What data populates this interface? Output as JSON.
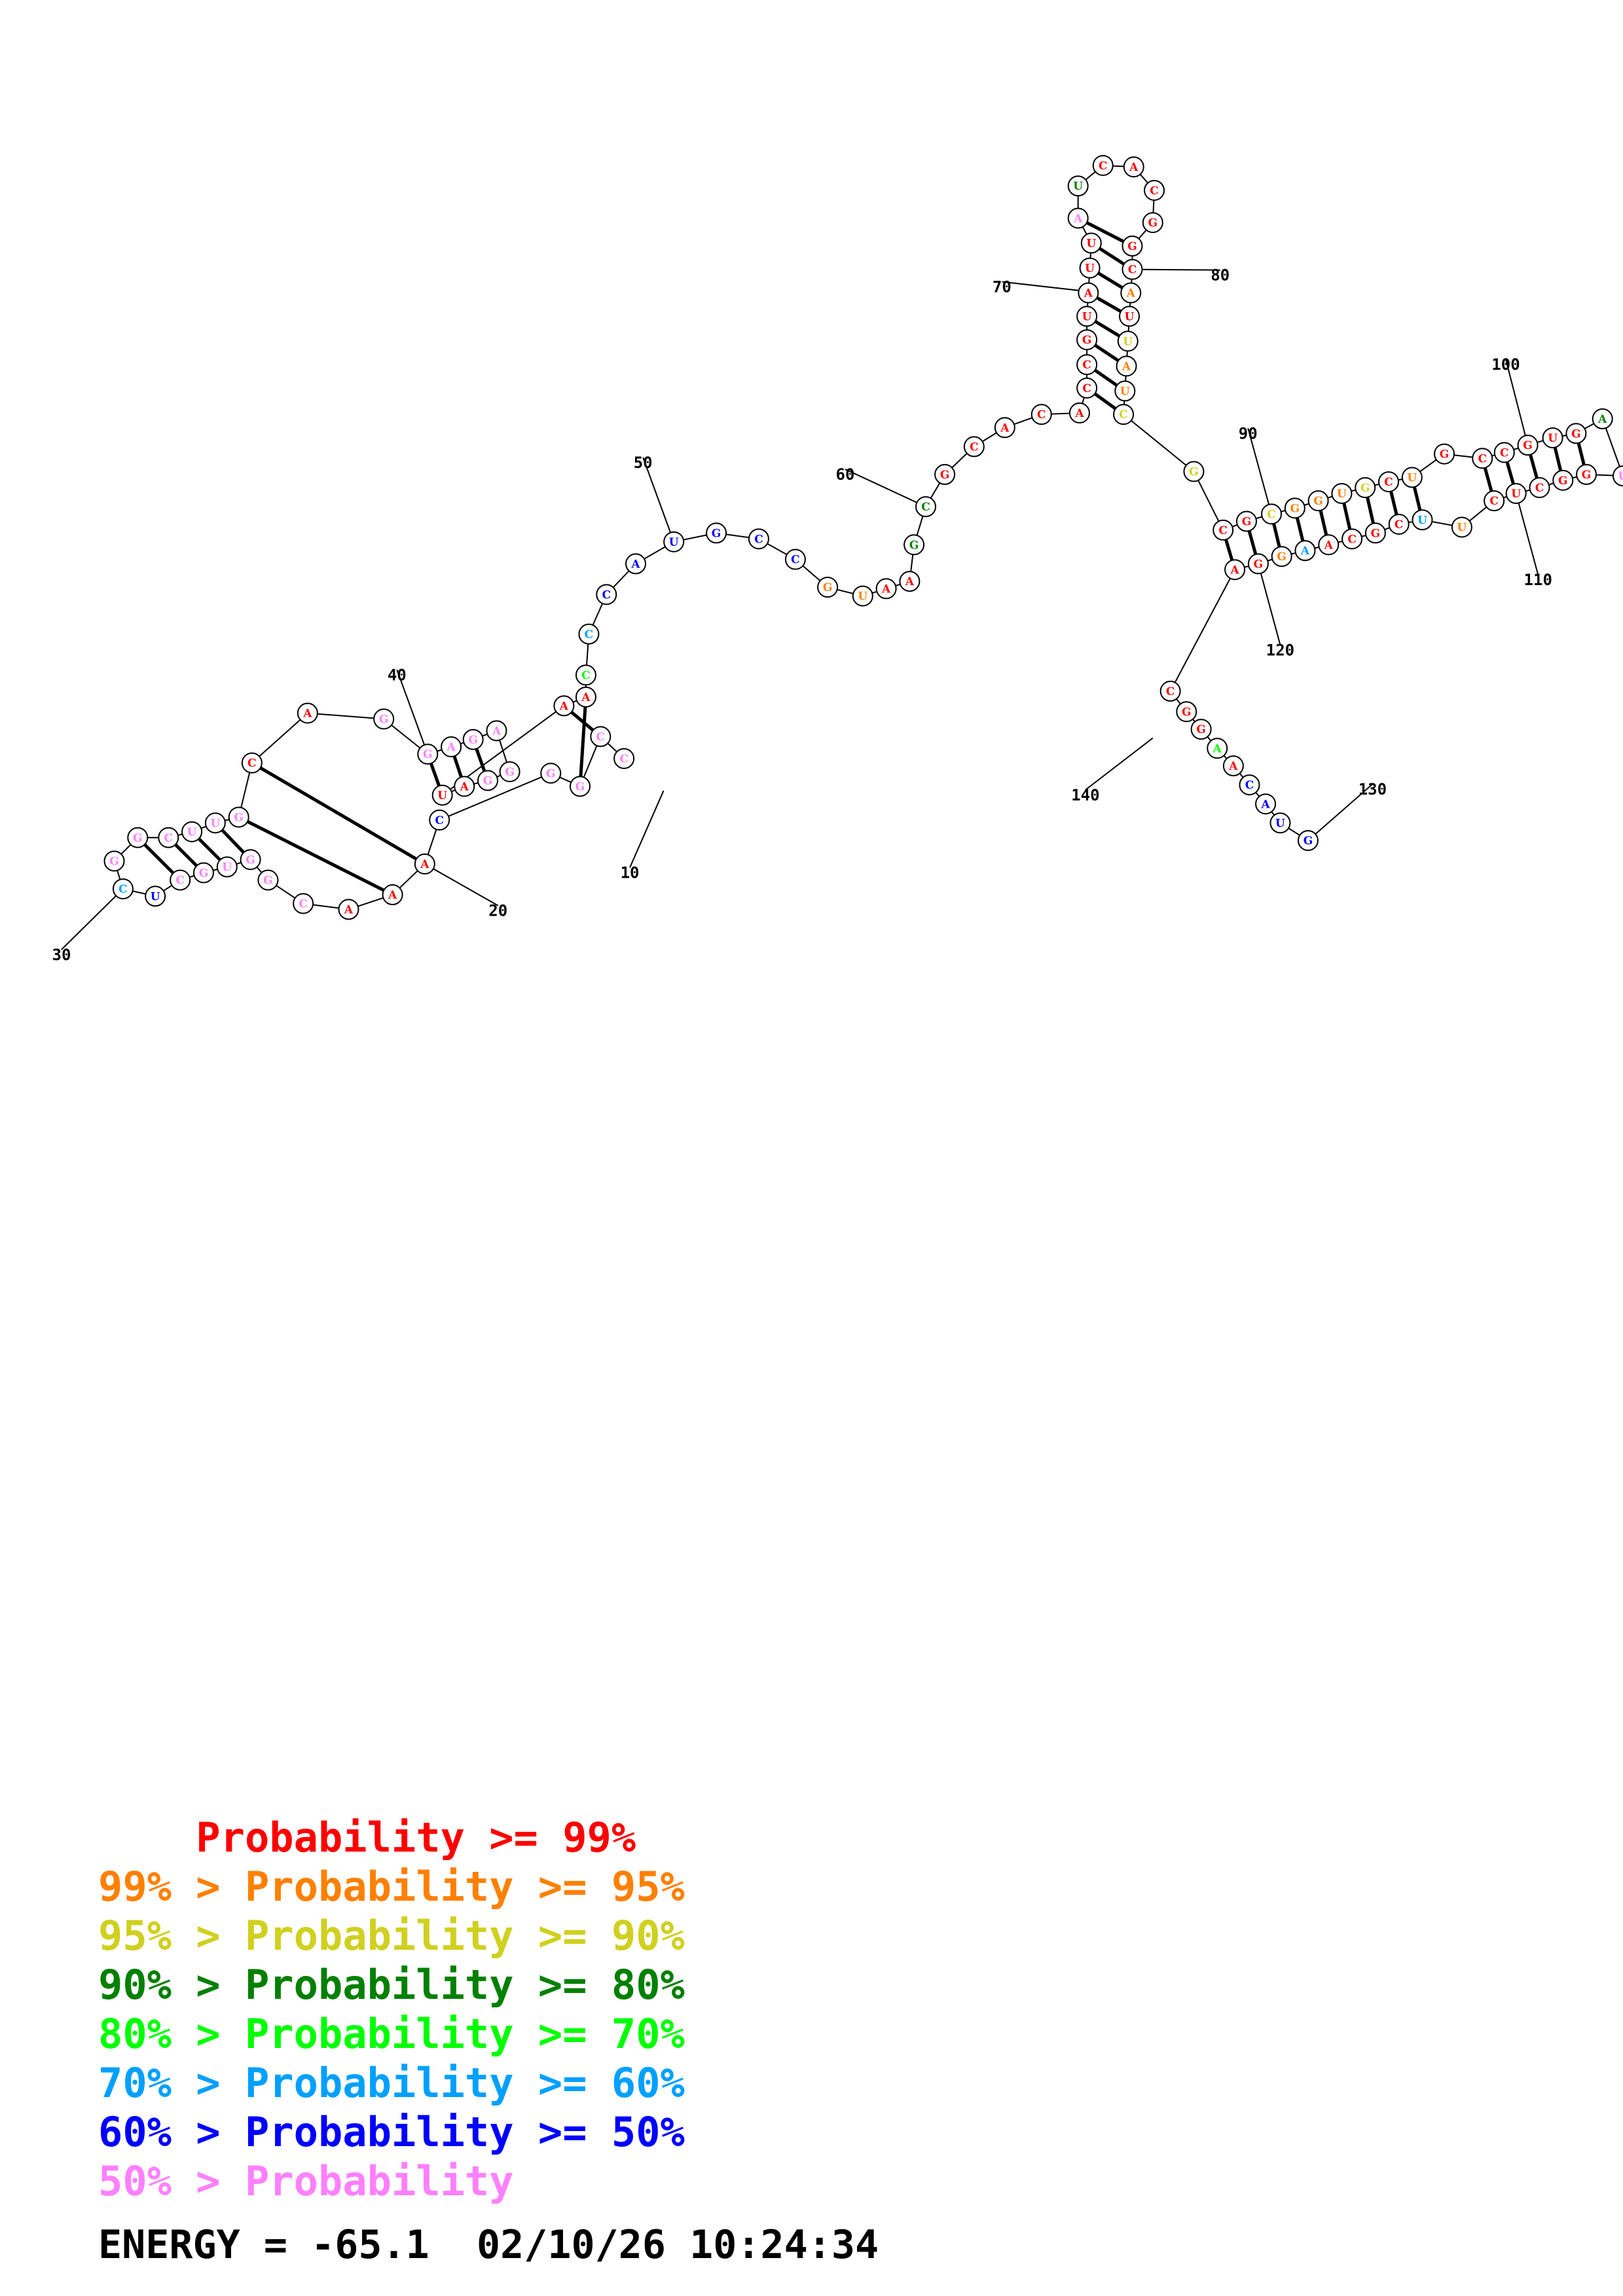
{
  "colors": {
    "red": "#ff0000",
    "orange": "#ff8000",
    "yellow": "#d0d020",
    "darkgreen": "#008000",
    "green": "#00ff00",
    "cyan": "#00a0ff",
    "blue": "#0000ff",
    "pink": "#ff80ff"
  },
  "legend": [
    {
      "text": "    Probability >= 99%",
      "color": "red"
    },
    {
      "text": "99% > Probability >= 95%",
      "color": "orange"
    },
    {
      "text": "95% > Probability >= 90%",
      "color": "yellow"
    },
    {
      "text": "90% > Probability >= 80%",
      "color": "darkgreen"
    },
    {
      "text": "80% > Probability >= 70%",
      "color": "green"
    },
    {
      "text": "70% > Probability >= 60%",
      "color": "cyan"
    },
    {
      "text": "60% > Probability >= 50%",
      "color": "blue"
    },
    {
      "text": "50% > Probability",
      "color": "pink"
    }
  ],
  "footer": {
    "energy": "ENERGY = -65.1",
    "timestamp": "02/10/26 10:24:34"
  },
  "index_labels": [
    "10",
    "20",
    "30",
    "40",
    "50",
    "60",
    "70",
    "80",
    "90",
    "100",
    "110",
    "120",
    "130",
    "140"
  ],
  "structure": {
    "note_colors": "base letters with probability colour classes",
    "bases": [
      {
        "b": "C",
        "c": "pink"
      },
      {
        "b": "C",
        "c": "pink"
      },
      {
        "b": "G",
        "c": "pink"
      },
      {
        "b": "G",
        "c": "pink"
      },
      {
        "b": "C",
        "c": "blue"
      },
      {
        "b": "A",
        "c": "red"
      },
      {
        "b": "A",
        "c": "red"
      },
      {
        "b": "A",
        "c": "red"
      },
      {
        "b": "C",
        "c": "pink"
      },
      {
        "b": "G",
        "c": "pink"
      },
      {
        "b": "G",
        "c": "pink"
      },
      {
        "b": "U",
        "c": "pink"
      },
      {
        "b": "G",
        "c": "pink"
      },
      {
        "b": "C",
        "c": "pink"
      },
      {
        "b": "U",
        "c": "blue"
      },
      {
        "b": "C",
        "c": "cyan"
      },
      {
        "b": "G",
        "c": "pink"
      },
      {
        "b": "G",
        "c": "pink"
      },
      {
        "b": "C",
        "c": "pink"
      },
      {
        "b": "U",
        "c": "pink"
      },
      {
        "b": "U",
        "c": "pink"
      },
      {
        "b": "G",
        "c": "pink"
      },
      {
        "b": "C",
        "c": "red"
      },
      {
        "b": "A",
        "c": "red"
      },
      {
        "b": "G",
        "c": "pink"
      },
      {
        "b": "G",
        "c": "pink"
      },
      {
        "b": "A",
        "c": "pink"
      },
      {
        "b": "G",
        "c": "pink"
      },
      {
        "b": "A",
        "c": "pink"
      },
      {
        "b": "G",
        "c": "pink"
      },
      {
        "b": "G",
        "c": "pink"
      },
      {
        "b": "A",
        "c": "red"
      },
      {
        "b": "U",
        "c": "red"
      },
      {
        "b": "A",
        "c": "red"
      },
      {
        "b": "A",
        "c": "red"
      },
      {
        "b": "C",
        "c": "green"
      },
      {
        "b": "C",
        "c": "cyan"
      },
      {
        "b": "C",
        "c": "blue"
      },
      {
        "b": "A",
        "c": "blue"
      },
      {
        "b": "U",
        "c": "blue"
      },
      {
        "b": "G",
        "c": "blue"
      },
      {
        "b": "C",
        "c": "blue"
      },
      {
        "b": "C",
        "c": "blue"
      },
      {
        "b": "G",
        "c": "orange"
      },
      {
        "b": "U",
        "c": "orange"
      },
      {
        "b": "A",
        "c": "red"
      },
      {
        "b": "A",
        "c": "red"
      },
      {
        "b": "G",
        "c": "darkgreen"
      },
      {
        "b": "C",
        "c": "darkgreen"
      },
      {
        "b": "G",
        "c": "red"
      },
      {
        "b": "C",
        "c": "red"
      },
      {
        "b": "A",
        "c": "red"
      },
      {
        "b": "C",
        "c": "red"
      },
      {
        "b": "A",
        "c": "red"
      },
      {
        "b": "C",
        "c": "red"
      },
      {
        "b": "C",
        "c": "red"
      },
      {
        "b": "G",
        "c": "red"
      },
      {
        "b": "U",
        "c": "red"
      },
      {
        "b": "A",
        "c": "red"
      },
      {
        "b": "U",
        "c": "red"
      },
      {
        "b": "U",
        "c": "red"
      },
      {
        "b": "A",
        "c": "pink"
      },
      {
        "b": "U",
        "c": "darkgreen"
      },
      {
        "b": "C",
        "c": "red"
      },
      {
        "b": "A",
        "c": "red"
      },
      {
        "b": "C",
        "c": "red"
      },
      {
        "b": "G",
        "c": "red"
      },
      {
        "b": "G",
        "c": "red"
      },
      {
        "b": "C",
        "c": "red"
      },
      {
        "b": "A",
        "c": "orange"
      },
      {
        "b": "U",
        "c": "red"
      },
      {
        "b": "U",
        "c": "yellow"
      },
      {
        "b": "A",
        "c": "orange"
      },
      {
        "b": "U",
        "c": "orange"
      },
      {
        "b": "C",
        "c": "yellow"
      },
      {
        "b": "G",
        "c": "yellow"
      },
      {
        "b": "C",
        "c": "red"
      },
      {
        "b": "G",
        "c": "red"
      },
      {
        "b": "C",
        "c": "yellow"
      },
      {
        "b": "G",
        "c": "orange"
      },
      {
        "b": "G",
        "c": "orange"
      },
      {
        "b": "U",
        "c": "orange"
      },
      {
        "b": "G",
        "c": "yellow"
      },
      {
        "b": "C",
        "c": "red"
      },
      {
        "b": "U",
        "c": "orange"
      },
      {
        "b": "G",
        "c": "red"
      },
      {
        "b": "C",
        "c": "red"
      },
      {
        "b": "C",
        "c": "red"
      },
      {
        "b": "G",
        "c": "red"
      },
      {
        "b": "U",
        "c": "red"
      },
      {
        "b": "G",
        "c": "red"
      },
      {
        "b": "A",
        "c": "darkgreen"
      },
      {
        "b": "U",
        "c": "pink"
      },
      {
        "b": "G",
        "c": "red"
      },
      {
        "b": "G",
        "c": "red"
      },
      {
        "b": "C",
        "c": "red"
      },
      {
        "b": "U",
        "c": "red"
      },
      {
        "b": "C",
        "c": "red"
      },
      {
        "b": "U",
        "c": "orange"
      },
      {
        "b": "U",
        "c": "cyan"
      },
      {
        "b": "C",
        "c": "red"
      },
      {
        "b": "G",
        "c": "red"
      },
      {
        "b": "C",
        "c": "red"
      },
      {
        "b": "A",
        "c": "red"
      },
      {
        "b": "A",
        "c": "cyan"
      },
      {
        "b": "G",
        "c": "orange"
      },
      {
        "b": "G",
        "c": "red"
      },
      {
        "b": "A",
        "c": "red"
      },
      {
        "b": "C",
        "c": "red"
      },
      {
        "b": "G",
        "c": "red"
      },
      {
        "b": "G",
        "c": "red"
      },
      {
        "b": "A",
        "c": "green"
      },
      {
        "b": "A",
        "c": "red"
      },
      {
        "b": "C",
        "c": "blue"
      },
      {
        "b": "A",
        "c": "blue"
      },
      {
        "b": "U",
        "c": "blue"
      },
      {
        "b": "G",
        "c": "blue"
      }
    ]
  }
}
